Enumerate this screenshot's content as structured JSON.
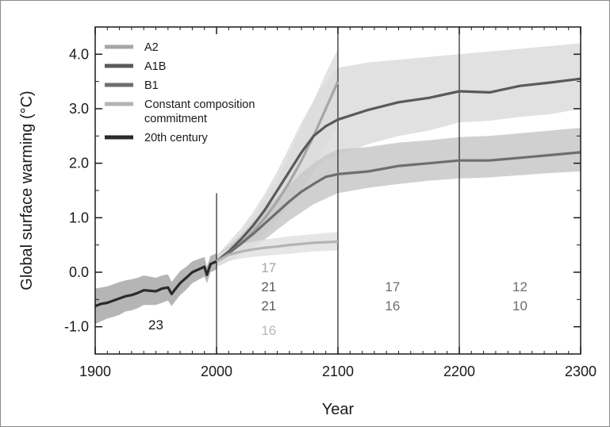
{
  "chart_data": {
    "type": "line",
    "xlabel": "Year",
    "ylabel": "Global surface warming (°C)",
    "xlim": [
      1900,
      2300
    ],
    "ylim": [
      -1.5,
      4.5
    ],
    "x_ticks": [
      "1900",
      "2000",
      "2100",
      "2200",
      "2300"
    ],
    "y_ticks": [
      "-1.0",
      "0.0",
      "1.0",
      "2.0",
      "3.0",
      "4.0"
    ],
    "grid": false,
    "legend_position": "top-left",
    "period_dividers": [
      2000,
      2100,
      2200
    ],
    "series": [
      {
        "name": "A2",
        "color": "#a6a6a6",
        "band_color": "#dedede",
        "x": [
          2000,
          2010,
          2020,
          2030,
          2040,
          2050,
          2060,
          2070,
          2080,
          2090,
          2100
        ],
        "y": [
          0.2,
          0.35,
          0.52,
          0.75,
          1.0,
          1.3,
          1.65,
          2.05,
          2.5,
          3.0,
          3.5
        ],
        "y_low": [
          0.1,
          0.2,
          0.35,
          0.5,
          0.7,
          0.95,
          1.2,
          1.5,
          1.85,
          2.3,
          2.7
        ],
        "y_high": [
          0.3,
          0.5,
          0.7,
          1.0,
          1.35,
          1.7,
          2.15,
          2.65,
          3.15,
          3.65,
          4.1
        ]
      },
      {
        "name": "A1B",
        "color": "#5a5a5a",
        "band_color": "#dcdcdc",
        "x": [
          2000,
          2010,
          2020,
          2030,
          2040,
          2050,
          2060,
          2070,
          2080,
          2090,
          2100,
          2125,
          2150,
          2175,
          2200,
          2225,
          2250,
          2275,
          2300
        ],
        "y": [
          0.2,
          0.38,
          0.6,
          0.85,
          1.15,
          1.5,
          1.85,
          2.2,
          2.5,
          2.68,
          2.8,
          2.98,
          3.12,
          3.2,
          3.32,
          3.3,
          3.42,
          3.48,
          3.55
        ],
        "y_low": [
          0.1,
          0.2,
          0.38,
          0.58,
          0.8,
          1.05,
          1.35,
          1.65,
          1.9,
          2.05,
          2.15,
          2.35,
          2.5,
          2.6,
          2.75,
          2.78,
          2.85,
          2.9,
          3.0
        ],
        "y_high": [
          0.3,
          0.55,
          0.8,
          1.1,
          1.45,
          1.85,
          2.3,
          2.75,
          3.15,
          3.5,
          3.75,
          3.85,
          3.9,
          3.95,
          4.0,
          4.05,
          4.1,
          4.15,
          4.2
        ]
      },
      {
        "name": "B1",
        "color": "#6e6e6e",
        "band_color": "#c8c8c8",
        "x": [
          2000,
          2010,
          2020,
          2030,
          2040,
          2050,
          2060,
          2070,
          2080,
          2090,
          2100,
          2125,
          2150,
          2175,
          2200,
          2225,
          2250,
          2275,
          2300
        ],
        "y": [
          0.2,
          0.35,
          0.52,
          0.7,
          0.9,
          1.1,
          1.3,
          1.48,
          1.62,
          1.75,
          1.8,
          1.85,
          1.95,
          2.0,
          2.05,
          2.05,
          2.1,
          2.15,
          2.2
        ],
        "y_low": [
          0.1,
          0.2,
          0.32,
          0.45,
          0.6,
          0.78,
          0.95,
          1.1,
          1.25,
          1.35,
          1.45,
          1.55,
          1.62,
          1.68,
          1.72,
          1.74,
          1.78,
          1.82,
          1.85
        ],
        "y_high": [
          0.3,
          0.48,
          0.68,
          0.92,
          1.15,
          1.38,
          1.6,
          1.82,
          2.0,
          2.15,
          2.25,
          2.3,
          2.38,
          2.42,
          2.48,
          2.5,
          2.55,
          2.6,
          2.65
        ]
      },
      {
        "name": "Constant composition commitment",
        "legend_lines": [
          "Constant composition",
          "commitment"
        ],
        "color": "#b4b4b4",
        "band_color": "#e2e2e2",
        "x": [
          2000,
          2010,
          2020,
          2030,
          2040,
          2050,
          2060,
          2070,
          2080,
          2090,
          2100
        ],
        "y": [
          0.2,
          0.32,
          0.38,
          0.42,
          0.45,
          0.47,
          0.5,
          0.52,
          0.54,
          0.55,
          0.56
        ],
        "y_low": [
          0.1,
          0.2,
          0.25,
          0.28,
          0.3,
          0.32,
          0.34,
          0.36,
          0.38,
          0.39,
          0.4
        ],
        "y_high": [
          0.3,
          0.44,
          0.52,
          0.56,
          0.6,
          0.63,
          0.66,
          0.68,
          0.7,
          0.72,
          0.74
        ]
      },
      {
        "name": "20th century",
        "color": "#2a2a2a",
        "band_color": "#a8a8a8",
        "x": [
          1900,
          1905,
          1910,
          1915,
          1920,
          1925,
          1930,
          1935,
          1940,
          1945,
          1950,
          1955,
          1960,
          1963,
          1965,
          1970,
          1975,
          1980,
          1985,
          1990,
          1992,
          1995,
          2000
        ],
        "y": [
          -0.62,
          -0.58,
          -0.56,
          -0.52,
          -0.48,
          -0.44,
          -0.42,
          -0.38,
          -0.33,
          -0.34,
          -0.35,
          -0.3,
          -0.28,
          -0.4,
          -0.34,
          -0.2,
          -0.1,
          0.0,
          0.05,
          0.1,
          -0.05,
          0.15,
          0.2
        ],
        "y_low": [
          -0.95,
          -0.9,
          -0.85,
          -0.82,
          -0.78,
          -0.72,
          -0.7,
          -0.66,
          -0.6,
          -0.6,
          -0.6,
          -0.56,
          -0.52,
          -0.62,
          -0.56,
          -0.42,
          -0.32,
          -0.2,
          -0.14,
          -0.08,
          -0.2,
          0.0,
          0.05
        ],
        "y_high": [
          -0.3,
          -0.28,
          -0.26,
          -0.22,
          -0.18,
          -0.15,
          -0.13,
          -0.1,
          -0.06,
          -0.08,
          -0.1,
          -0.06,
          -0.04,
          -0.18,
          -0.12,
          0.02,
          0.1,
          0.2,
          0.24,
          0.28,
          0.1,
          0.3,
          0.35
        ]
      }
    ],
    "model_counts": [
      {
        "text": "23",
        "x": 1950,
        "y": -1.05,
        "color": "#1a1a1a"
      },
      {
        "text": "17",
        "x": 2043,
        "y": 0.0,
        "color": "#a6a6a6"
      },
      {
        "text": "21",
        "x": 2043,
        "y": -0.35,
        "color": "#5a5a5a"
      },
      {
        "text": "21",
        "x": 2043,
        "y": -0.7,
        "color": "#5a5a5a"
      },
      {
        "text": "16",
        "x": 2043,
        "y": -1.15,
        "color": "#b8b8b8"
      },
      {
        "text": "17",
        "x": 2145,
        "y": -0.35,
        "color": "#6e6e6e"
      },
      {
        "text": "16",
        "x": 2145,
        "y": -0.7,
        "color": "#6e6e6e"
      },
      {
        "text": "12",
        "x": 2250,
        "y": -0.35,
        "color": "#6e6e6e"
      },
      {
        "text": "10",
        "x": 2250,
        "y": -0.7,
        "color": "#6e6e6e"
      }
    ]
  }
}
